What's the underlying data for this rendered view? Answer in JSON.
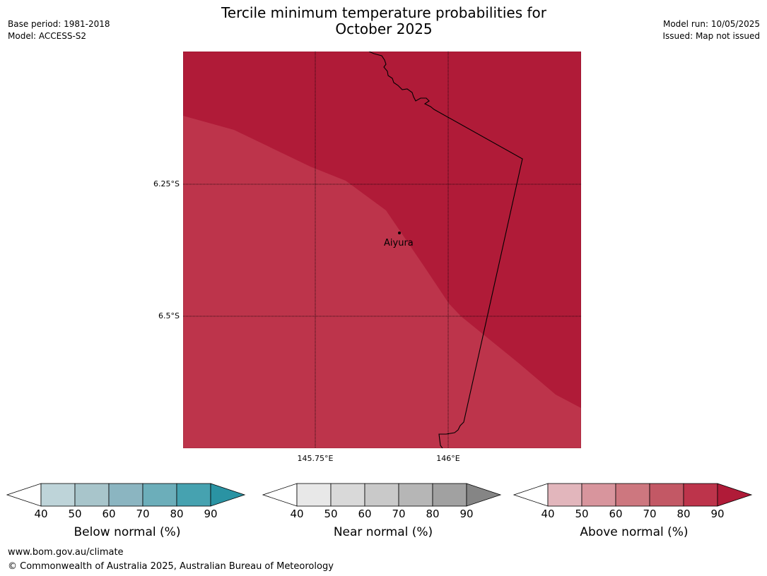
{
  "header": {
    "title_line1": "Tercile minimum temperature probabilities for",
    "title_line2": "October 2025",
    "base_period": "Base period: 1981-2018",
    "model": "Model: ACCESS-S2",
    "model_run": "Model run: 10/05/2025",
    "issued": "Issued: Map not issued"
  },
  "map": {
    "lat_labels": [
      "6.25°S",
      "6.5°S"
    ],
    "lon_labels": [
      "145.75°E",
      "146°E"
    ],
    "place": "Aiyura",
    "colors": {
      "zone_90_plus": "#b01b38",
      "zone_80_90": "#bd344b"
    }
  },
  "legends": [
    {
      "label": "Below normal (%)",
      "ticks": [
        "40",
        "50",
        "60",
        "70",
        "80",
        "90"
      ],
      "colors": [
        "#ffffff",
        "#bed4d9",
        "#a8c5cb",
        "#8bb5c1",
        "#6caeba",
        "#46a2b0",
        "#2a93a3"
      ]
    },
    {
      "label": "Near normal (%)",
      "ticks": [
        "40",
        "50",
        "60",
        "70",
        "80",
        "90"
      ],
      "colors": [
        "#ffffff",
        "#e8e8e8",
        "#d9d9d9",
        "#c9c9c9",
        "#b6b6b6",
        "#a1a1a1",
        "#858585"
      ]
    },
    {
      "label": "Above normal (%)",
      "ticks": [
        "40",
        "50",
        "60",
        "70",
        "80",
        "90"
      ],
      "colors": [
        "#ffffff",
        "#e2b6bc",
        "#d8959d",
        "#cd777f",
        "#c35865",
        "#bd344b",
        "#b01b38"
      ]
    }
  ],
  "footer": {
    "url": "www.bom.gov.au/climate",
    "copyright": "© Commonwealth of Australia 2025, Australian Bureau of Meteorology"
  }
}
